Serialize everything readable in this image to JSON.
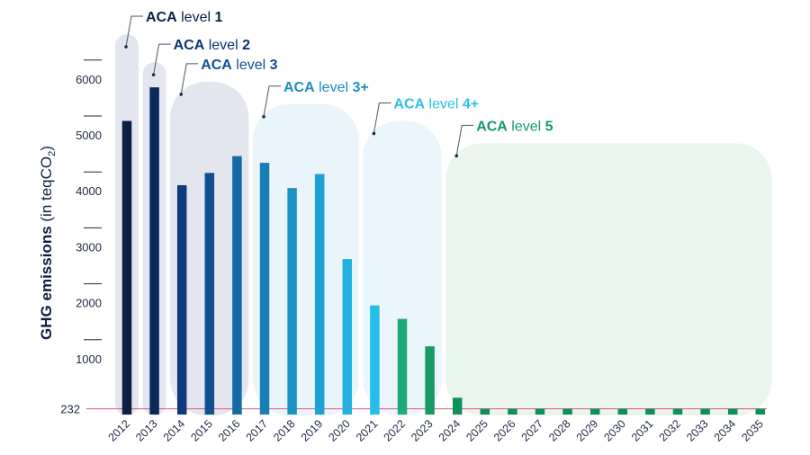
{
  "chart_data": {
    "type": "bar",
    "ylabel_bold": "GHG emissions",
    "ylabel_rest": " (in teqCO",
    "ylabel_sub": "2",
    "ylabel_close": ")",
    "yticks": [
      1000,
      2000,
      3000,
      4000,
      5000,
      6000
    ],
    "ylim": [
      0,
      7000
    ],
    "threshold": {
      "value": 232,
      "label": "232",
      "color": "#e8557a"
    },
    "categories": [
      "2012",
      "2013",
      "2014",
      "2015",
      "2016",
      "2017",
      "2018",
      "2019",
      "2020",
      "2021",
      "2022",
      "2023",
      "2024",
      "2025",
      "2026",
      "2027",
      "2028",
      "2029",
      "2030",
      "2031",
      "2032",
      "2033",
      "2034",
      "2035"
    ],
    "values": [
      5250,
      5850,
      4100,
      4320,
      4620,
      4500,
      4050,
      4300,
      2780,
      1950,
      1710,
      1220,
      300,
      232,
      232,
      232,
      232,
      232,
      232,
      232,
      232,
      232,
      232,
      232
    ],
    "bar_colors": [
      "#0b1f45",
      "#0b2a5c",
      "#0d3a7c",
      "#10508f",
      "#136aa6",
      "#167fb6",
      "#1a93c4",
      "#1ea2d1",
      "#22b1dd",
      "#26bde6",
      "#1eab7a",
      "#179a64",
      "#0f8f5a",
      "#0f8f5a",
      "#0f8f5a",
      "#0f8f5a",
      "#0f8f5a",
      "#0f8f5a",
      "#0f8f5a",
      "#0f8f5a",
      "#0f8f5a",
      "#0f8f5a",
      "#0f8f5a",
      "#0f8f5a"
    ],
    "levels": [
      {
        "prefix": "ACA",
        "mid": " level ",
        "num": "1",
        "color": "#0b1f45",
        "bg": "#e3e6ee",
        "start": 0,
        "end": 0,
        "top_value": 6800
      },
      {
        "prefix": "ACA",
        "mid": " level ",
        "num": "2",
        "color": "#0d3274",
        "bg": "#e3e6ee",
        "start": 1,
        "end": 1,
        "top_value": 6300
      },
      {
        "prefix": "ACA",
        "mid": " level ",
        "num": "3",
        "color": "#10508f",
        "bg": "#e3e6ee",
        "start": 2,
        "end": 4,
        "top_value": 5950
      },
      {
        "prefix": "ACA",
        "mid": " level ",
        "num": "3+",
        "color": "#1a8ec4",
        "bg": "#eaf5fb",
        "start": 5,
        "end": 8,
        "top_value": 5550
      },
      {
        "prefix": "ACA",
        "mid": " level ",
        "num": "4+",
        "color": "#2bc0e8",
        "bg": "#eaf6fb",
        "start": 9,
        "end": 11,
        "top_value": 5250
      },
      {
        "prefix": "ACA",
        "mid": " level ",
        "num": "5",
        "color": "#129a6a",
        "bg": "#ebf5ef",
        "start": 12,
        "end": 23,
        "top_value": 4850
      }
    ]
  }
}
